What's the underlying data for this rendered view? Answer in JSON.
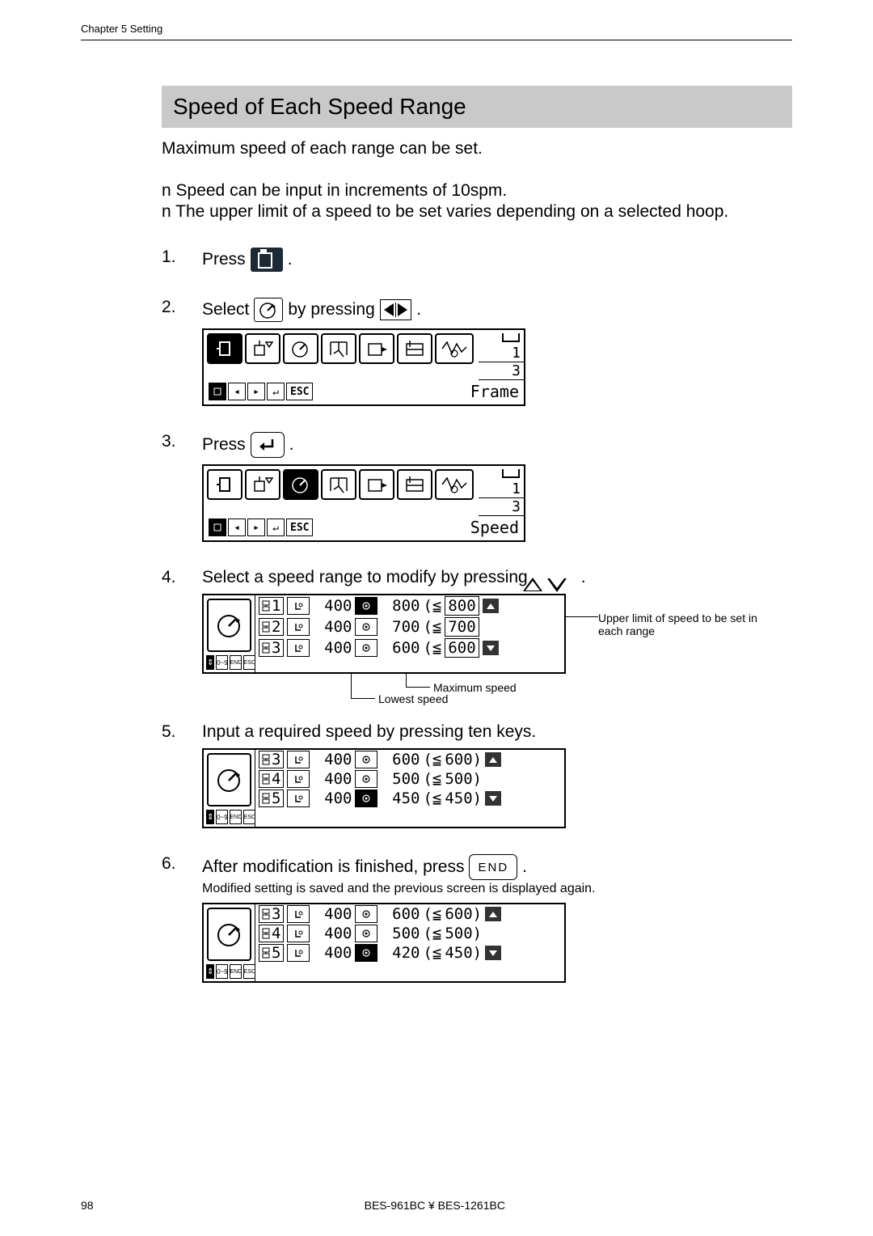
{
  "chapter_label": "Chapter 5 Setting",
  "section_title": "Speed of Each Speed Range",
  "intro": "Maximum speed of each range can be set.",
  "bullets": [
    "n  Speed can be input in increments of 10spm.",
    "n  The upper limit of a speed to be set varies depending on a selected hoop."
  ],
  "steps": {
    "s1": {
      "num": "1.",
      "a": "Press",
      "b": "."
    },
    "s2": {
      "num": "2.",
      "a": "Select",
      "b": "by pressing",
      "c": "."
    },
    "s3": {
      "num": "3.",
      "a": "Press",
      "b": "."
    },
    "s4": {
      "num": "4.",
      "a": "Select a speed range to modify by pressing",
      "b": "."
    },
    "s5": {
      "num": "5.",
      "a": "Input a required speed by pressing ten keys."
    },
    "s6": {
      "num": "6.",
      "a": "After modification is finished, press",
      "b": ".",
      "sub": "Modified setting is saved and the previous screen is displayed again."
    }
  },
  "end_label": "END",
  "lcd": {
    "num1": "1",
    "num3": "3",
    "frame": "Frame",
    "speed": "Speed",
    "esc": "ESC"
  },
  "annot": {
    "upper": "Upper limit of speed to be set in each range",
    "max": "Maximum speed",
    "low": "Lowest speed"
  },
  "ctrl09": "0~9",
  "ctrlend": "END",
  "ctrlesc": "ESC",
  "spd4": {
    "rows": [
      {
        "rng": "1",
        "low": "400",
        "max": "800",
        "lim": "800"
      },
      {
        "rng": "2",
        "low": "400",
        "max": "700",
        "lim": "700"
      },
      {
        "rng": "3",
        "low": "400",
        "max": "600",
        "lim": "600"
      }
    ],
    "highlight_max_idx": 0,
    "boxed_limits": true
  },
  "spd5": {
    "rows": [
      {
        "rng": "3",
        "low": "400",
        "max": "600",
        "lim": "600"
      },
      {
        "rng": "4",
        "low": "400",
        "max": "500",
        "lim": "500"
      },
      {
        "rng": "5",
        "low": "400",
        "max": "450",
        "lim": "450"
      }
    ],
    "highlight_max_idx": 2
  },
  "spd6": {
    "rows": [
      {
        "rng": "3",
        "low": "400",
        "max": "600",
        "lim": "600"
      },
      {
        "rng": "4",
        "low": "400",
        "max": "500",
        "lim": "500"
      },
      {
        "rng": "5",
        "low": "400",
        "max": "420",
        "lim": "450"
      }
    ],
    "highlight_max_idx": 2
  },
  "footer": {
    "page": "98",
    "model": "BES-961BC ¥ BES-1261BC"
  }
}
